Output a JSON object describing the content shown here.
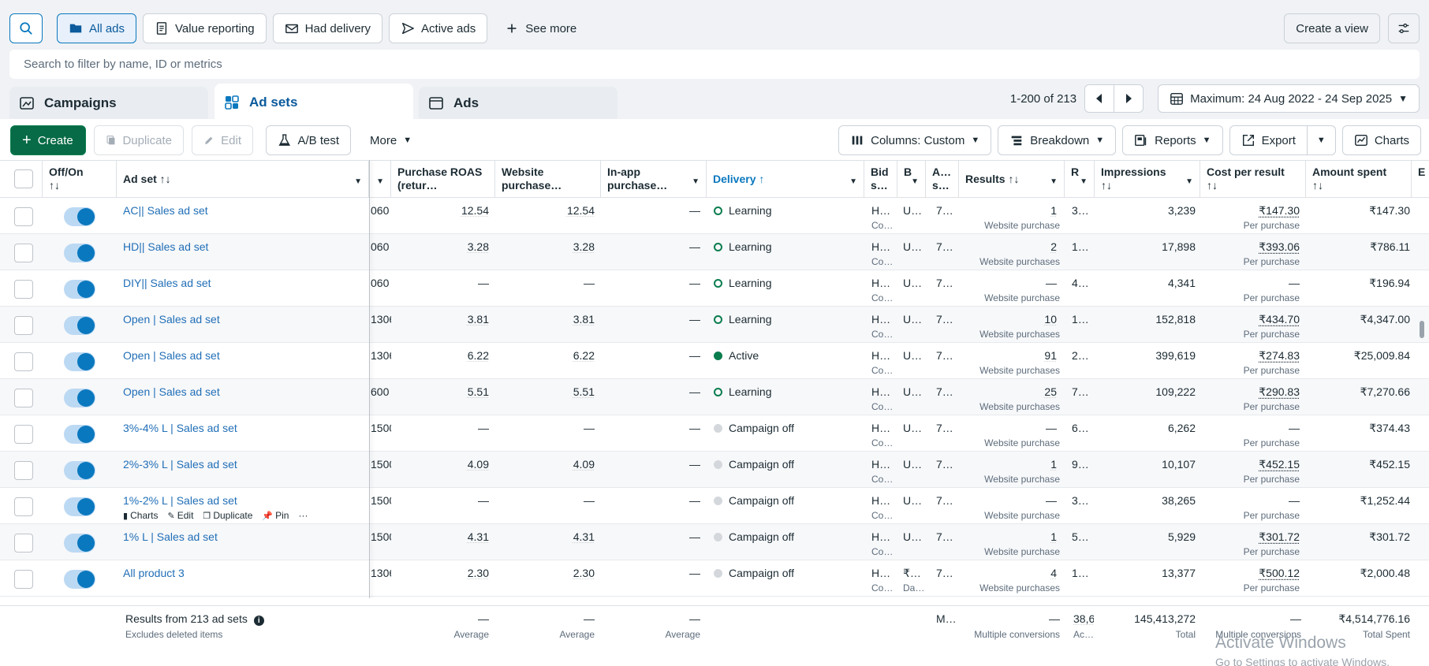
{
  "views": [
    {
      "label": "All ads",
      "icon": "folder-icon"
    },
    {
      "label": "Value reporting",
      "icon": "document-icon"
    },
    {
      "label": "Had delivery",
      "icon": "envelope-icon"
    },
    {
      "label": "Active ads",
      "icon": "send-icon"
    },
    {
      "label": "See more",
      "icon": "plus-icon"
    }
  ],
  "create_view_label": "Create a view",
  "filter_placeholder": "Search to filter by name, ID or metrics",
  "tabs": [
    {
      "label": "Campaigns"
    },
    {
      "label": "Ad sets"
    },
    {
      "label": "Ads"
    }
  ],
  "pager": {
    "text": "1-200 of 213",
    "date_range": "Maximum: 24 Aug 2022 - 24 Sep 2025"
  },
  "toolbar": {
    "create": "Create",
    "duplicate": "Duplicate",
    "edit": "Edit",
    "ab_test": "A/B test",
    "more": "More",
    "columns": "Columns: Custom",
    "breakdown": "Breakdown",
    "reports": "Reports",
    "export": "Export",
    "charts": "Charts"
  },
  "headers": {
    "offon": "Off/On",
    "offon_sort": "↑↓",
    "adset": "Ad set ↑↓",
    "roas": "Purchase ROAS (retur…",
    "website": "Website purchase…",
    "inapp": "In-app purchase…",
    "delivery": "Delivery ↑",
    "bid": "Bid s…",
    "b2": "B",
    "a2": "A… s…",
    "results": "Results ↑↓",
    "r2": "R",
    "impressions": "Impressions",
    "impressions_sort": "↑↓",
    "cpr": "Cost per result",
    "cpr_sort": "↑↓",
    "spent": "Amount spent",
    "spent_sort": "↑↓",
    "e": "E"
  },
  "rows": [
    {
      "name": "AC|| Sales ad set",
      "id": "060",
      "roas": "12.54",
      "web": "12.54",
      "inapp": "—",
      "delivery": "Learning",
      "status": "learning",
      "bid": "H…",
      "bid_sub": "Co…",
      "b": "U…",
      "a": "7…",
      "results": "1",
      "results_sub": "Website purchase",
      "r": "3…",
      "impressions": "3,239",
      "cpr": "₹147.30",
      "cpr_sub": "Per purchase",
      "spent": "₹147.30"
    },
    {
      "name": "HD|| Sales ad set",
      "id": "060",
      "roas": "3.28",
      "web": "3.28",
      "inapp": "—",
      "delivery": "Learning",
      "status": "learning",
      "bid": "H…",
      "bid_sub": "Co…",
      "b": "U…",
      "a": "7…",
      "results": "2",
      "results_sub": "Website purchases",
      "r": "1…",
      "impressions": "17,898",
      "cpr": "₹393.06",
      "cpr_sub": "Per purchase",
      "spent": "₹786.11"
    },
    {
      "name": "DIY|| Sales ad set",
      "id": "060",
      "roas": "—",
      "web": "—",
      "inapp": "—",
      "delivery": "Learning",
      "status": "learning",
      "bid": "H…",
      "bid_sub": "Co…",
      "b": "U…",
      "a": "7…",
      "results": "—",
      "results_sub": "Website purchase",
      "r": "4…",
      "impressions": "4,341",
      "cpr": "—",
      "cpr_sub": "Per purchase",
      "spent": "₹196.94"
    },
    {
      "name": "Open | Sales ad set",
      "id": "1306",
      "roas": "3.81",
      "web": "3.81",
      "inapp": "—",
      "delivery": "Learning",
      "status": "learning",
      "bid": "H…",
      "bid_sub": "Co…",
      "b": "U…",
      "a": "7…",
      "results": "10",
      "results_sub": "Website purchases",
      "r": "1…",
      "impressions": "152,818",
      "cpr": "₹434.70",
      "cpr_sub": "Per purchase",
      "spent": "₹4,347.00"
    },
    {
      "name": "Open | Sales ad set",
      "id": "1306",
      "roas": "6.22",
      "web": "6.22",
      "inapp": "—",
      "delivery": "Active",
      "status": "active",
      "bid": "H…",
      "bid_sub": "Co…",
      "b": "U…",
      "a": "7…",
      "results": "91",
      "results_sub": "Website purchases",
      "r": "2…",
      "impressions": "399,619",
      "cpr": "₹274.83",
      "cpr_sub": "Per purchase",
      "spent": "₹25,009.84"
    },
    {
      "name": "Open | Sales ad set",
      "id": "600",
      "roas": "5.51",
      "web": "5.51",
      "inapp": "—",
      "delivery": "Learning",
      "status": "learning",
      "bid": "H…",
      "bid_sub": "Co…",
      "b": "U…",
      "a": "7…",
      "results": "25",
      "results_sub": "Website purchases",
      "r": "7…",
      "impressions": "109,222",
      "cpr": "₹290.83",
      "cpr_sub": "Per purchase",
      "spent": "₹7,270.66"
    },
    {
      "name": "3%-4% L | Sales ad set",
      "id": "1500",
      "roas": "—",
      "web": "—",
      "inapp": "—",
      "delivery": "Campaign off",
      "status": "off",
      "bid": "H…",
      "bid_sub": "Co…",
      "b": "U…",
      "a": "7…",
      "results": "—",
      "results_sub": "Website purchase",
      "r": "6…",
      "impressions": "6,262",
      "cpr": "—",
      "cpr_sub": "Per purchase",
      "spent": "₹374.43"
    },
    {
      "name": "2%-3% L | Sales ad set",
      "id": "1500",
      "roas": "4.09",
      "web": "4.09",
      "inapp": "—",
      "delivery": "Campaign off",
      "status": "off",
      "bid": "H…",
      "bid_sub": "Co…",
      "b": "U…",
      "a": "7…",
      "results": "1",
      "results_sub": "Website purchase",
      "r": "9…",
      "impressions": "10,107",
      "cpr": "₹452.15",
      "cpr_sub": "Per purchase",
      "spent": "₹452.15"
    },
    {
      "name": "1%-2% L | Sales ad set",
      "id": "1500",
      "roas": "—",
      "web": "—",
      "inapp": "—",
      "delivery": "Campaign off",
      "status": "off",
      "bid": "H…",
      "bid_sub": "Co…",
      "b": "U…",
      "a": "7…",
      "results": "—",
      "results_sub": "Website purchase",
      "r": "3…",
      "impressions": "38,265",
      "cpr": "—",
      "cpr_sub": "Per purchase",
      "spent": "₹1,252.44",
      "actions": true
    },
    {
      "name": "1% L | Sales ad set",
      "id": "1500",
      "roas": "4.31",
      "web": "4.31",
      "inapp": "—",
      "delivery": "Campaign off",
      "status": "off",
      "bid": "H…",
      "bid_sub": "Co…",
      "b": "U…",
      "a": "7…",
      "results": "1",
      "results_sub": "Website purchase",
      "r": "5…",
      "impressions": "5,929",
      "cpr": "₹301.72",
      "cpr_sub": "Per purchase",
      "spent": "₹301.72"
    },
    {
      "name": "All product 3",
      "id": "1306",
      "roas": "2.30",
      "web": "2.30",
      "inapp": "—",
      "delivery": "Campaign off",
      "status": "off",
      "bid": "H…",
      "bid_sub": "Co…",
      "b": "₹…",
      "b_sub": "Da…",
      "a": "7…",
      "results": "4",
      "results_sub": "Website purchases",
      "r": "1…",
      "impressions": "13,377",
      "cpr": "₹500.12",
      "cpr_sub": "Per purchase",
      "spent": "₹2,000.48"
    }
  ],
  "row_actions": {
    "charts": "Charts",
    "edit": "Edit",
    "duplicate": "Duplicate",
    "pin": "Pin",
    "more": "···"
  },
  "footer": {
    "title": "Results from 213 ad sets",
    "sub": "Excludes deleted items",
    "roas": "—",
    "roas_sub": "Average",
    "web": "—",
    "web_sub": "Average",
    "inapp": "—",
    "inapp_sub": "Average",
    "a": "M…",
    "results": "—",
    "results_sub": "Multiple conversions",
    "r": "38,6",
    "r_sub": "Ac…",
    "impressions": "145,413,272",
    "impressions_sub": "Total",
    "cpr": "—",
    "cpr_sub": "Multiple conversions",
    "spent": "₹4,514,776.16",
    "spent_sub": "Total Spent"
  },
  "watermark": {
    "title": "Activate Windows",
    "sub": "Go to Settings to activate Windows."
  }
}
